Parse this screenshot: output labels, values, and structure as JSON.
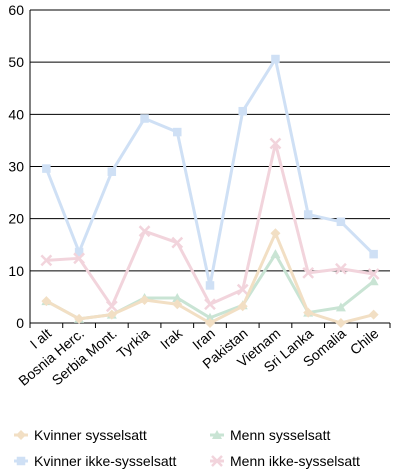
{
  "chart_data": {
    "type": "line",
    "title": "",
    "xlabel": "",
    "ylabel": "",
    "ylim": [
      0,
      60
    ],
    "yticks": [
      0,
      10,
      20,
      30,
      40,
      50,
      60
    ],
    "grid": "horizontal",
    "legend_position": "bottom",
    "categories": [
      "I alt",
      "Bosnia Herc.",
      "Serbia Mont.",
      "Tyrkia",
      "Irak",
      "Iran",
      "Pakistan",
      "Vietnam",
      "Sri Lanka",
      "Somalia",
      "Chile"
    ],
    "series": [
      {
        "name": "Kvinner sysselsatt",
        "color": "#f2dfc4",
        "marker": "diamond",
        "values": [
          4.2,
          0.8,
          1.6,
          4.4,
          3.6,
          0.0,
          3.2,
          17.2,
          2.0,
          0.0,
          1.6
        ]
      },
      {
        "name": "Menn sysselsatt",
        "color": "#c9e4d4",
        "marker": "triangle",
        "values": [
          4.2,
          0.8,
          1.6,
          4.8,
          4.8,
          1.0,
          3.4,
          13.2,
          2.0,
          3.0,
          8.0
        ]
      },
      {
        "name": "Kvinner ikke-sysselsatt",
        "color": "#cfe0f5",
        "marker": "square",
        "values": [
          29.6,
          13.6,
          29.0,
          39.2,
          36.6,
          7.2,
          40.6,
          50.6,
          20.8,
          19.4,
          13.2
        ]
      },
      {
        "name": "Menn ikke-sysselsatt",
        "color": "#f2d4dc",
        "marker": "cross",
        "values": [
          12.0,
          12.4,
          3.2,
          17.6,
          15.4,
          3.6,
          6.4,
          34.4,
          9.6,
          10.4,
          9.4
        ]
      }
    ]
  }
}
